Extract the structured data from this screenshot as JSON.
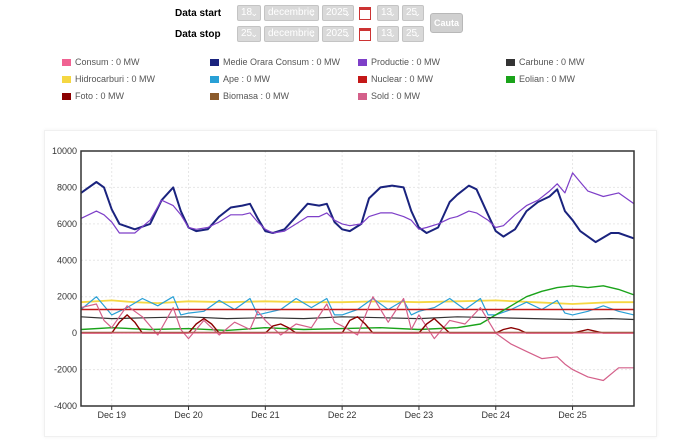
{
  "form": {
    "start_label": "Data start",
    "stop_label": "Data stop",
    "start": {
      "day": "18",
      "month": "decembrie",
      "year": "2025",
      "hour": "13",
      "minute": "25"
    },
    "stop": {
      "day": "25",
      "month": "decembrie",
      "year": "2025",
      "hour": "13",
      "minute": "25"
    },
    "search_button": "Cauta"
  },
  "legend": [
    {
      "label": "Consum : 0 MW",
      "color": "#f06292"
    },
    {
      "label": "Medie Orara Consum : 0 MW",
      "color": "#1a237e"
    },
    {
      "label": "Productie : 0 MW",
      "color": "#7e3fc8"
    },
    {
      "label": "Carbune : 0 MW",
      "color": "#333333"
    },
    {
      "label": "Hidrocarburi : 0 MW",
      "color": "#f5d742"
    },
    {
      "label": "Ape : 0 MW",
      "color": "#29a0d6"
    },
    {
      "label": "Nuclear : 0 MW",
      "color": "#c41818"
    },
    {
      "label": "Eolian : 0 MW",
      "color": "#1aa31a"
    },
    {
      "label": "Foto : 0 MW",
      "color": "#8b0000"
    },
    {
      "label": "Biomasa : 0 MW",
      "color": "#8b5a2b"
    },
    {
      "label": "Sold : 0 MW",
      "color": "#d4608a"
    }
  ],
  "chart_data": {
    "type": "line",
    "title": "",
    "xlabel": "",
    "ylabel": "",
    "ylim": [
      -4000,
      10000
    ],
    "xlim": [
      18.6,
      25.8
    ],
    "yticks": [
      10000,
      8000,
      6000,
      4000,
      2000,
      0,
      -2000,
      -4000
    ],
    "xtick_labels": [
      "Dec 19",
      "Dec 20",
      "Dec 21",
      "Dec 22",
      "Dec 23",
      "Dec 24",
      "Dec 25"
    ],
    "xtick_positions": [
      19,
      20,
      21,
      22,
      23,
      24,
      25
    ],
    "grid": true,
    "series": [
      {
        "name": "Medie Orara Consum",
        "color": "#1a237e",
        "width": 2,
        "x": [
          18.6,
          18.8,
          18.9,
          19.0,
          19.1,
          19.3,
          19.5,
          19.65,
          19.8,
          19.9,
          20.0,
          20.1,
          20.25,
          20.4,
          20.55,
          20.7,
          20.8,
          20.9,
          21.0,
          21.1,
          21.25,
          21.4,
          21.55,
          21.7,
          21.8,
          21.9,
          22.0,
          22.1,
          22.25,
          22.35,
          22.5,
          22.65,
          22.8,
          22.9,
          23.0,
          23.1,
          23.25,
          23.4,
          23.5,
          23.65,
          23.75,
          23.9,
          24.0,
          24.1,
          24.25,
          24.4,
          24.55,
          24.7,
          24.8,
          24.9,
          25.0,
          25.1,
          25.3,
          25.5,
          25.6,
          25.8
        ],
        "y": [
          7700,
          8300,
          8000,
          6800,
          6000,
          5700,
          6000,
          7300,
          8000,
          6700,
          5800,
          5600,
          5700,
          6400,
          6900,
          7000,
          7100,
          6300,
          5600,
          5500,
          5700,
          6400,
          7100,
          7000,
          7100,
          6100,
          5700,
          5600,
          6000,
          7400,
          8000,
          8100,
          8000,
          6700,
          5800,
          5500,
          5800,
          7200,
          7600,
          8100,
          7900,
          6500,
          5600,
          5300,
          5700,
          6700,
          7200,
          7500,
          7900,
          6700,
          6200,
          5600,
          5000,
          5500,
          5500,
          5200
        ]
      },
      {
        "name": "Productie",
        "color": "#7e3fc8",
        "width": 1.2,
        "x": [
          18.6,
          18.8,
          18.9,
          19.0,
          19.1,
          19.3,
          19.5,
          19.65,
          19.8,
          19.9,
          20.0,
          20.1,
          20.25,
          20.4,
          20.55,
          20.7,
          20.8,
          20.9,
          21.0,
          21.1,
          21.25,
          21.4,
          21.55,
          21.7,
          21.8,
          21.9,
          22.0,
          22.1,
          22.25,
          22.35,
          22.5,
          22.65,
          22.8,
          22.9,
          23.0,
          23.1,
          23.25,
          23.4,
          23.5,
          23.65,
          23.75,
          23.9,
          24.0,
          24.1,
          24.25,
          24.4,
          24.55,
          24.7,
          24.8,
          24.9,
          25.0,
          25.1,
          25.2,
          25.4,
          25.6,
          25.8
        ],
        "y": [
          6300,
          6700,
          6500,
          6100,
          5500,
          5500,
          6200,
          7300,
          7000,
          6500,
          5800,
          5700,
          5800,
          6100,
          6500,
          6500,
          6600,
          6100,
          5700,
          5500,
          5600,
          6000,
          6400,
          6400,
          6600,
          6200,
          6000,
          5900,
          6000,
          6400,
          6600,
          6600,
          6400,
          6200,
          5700,
          5800,
          6000,
          6300,
          6400,
          6700,
          6600,
          6200,
          5800,
          5900,
          6500,
          7000,
          7300,
          7800,
          8200,
          7700,
          8800,
          8300,
          7800,
          7500,
          7700,
          7100
        ]
      },
      {
        "name": "Hidrocarburi",
        "color": "#f5d742",
        "width": 1.8,
        "x": [
          18.6,
          19.0,
          19.3,
          19.6,
          20.0,
          20.5,
          21.0,
          21.5,
          22.0,
          22.5,
          23.0,
          23.5,
          24.0,
          24.5,
          25.0,
          25.5,
          25.8
        ],
        "y": [
          1700,
          1800,
          1700,
          1650,
          1750,
          1700,
          1750,
          1700,
          1700,
          1750,
          1700,
          1750,
          1800,
          1700,
          1600,
          1700,
          1700
        ]
      },
      {
        "name": "Ape",
        "color": "#29a0d6",
        "width": 1.2,
        "x": [
          18.6,
          18.8,
          18.9,
          19.0,
          19.2,
          19.4,
          19.6,
          19.8,
          19.9,
          20.0,
          20.2,
          20.4,
          20.6,
          20.8,
          20.9,
          21.0,
          21.2,
          21.4,
          21.6,
          21.8,
          21.9,
          22.0,
          22.2,
          22.4,
          22.6,
          22.8,
          22.9,
          23.0,
          23.2,
          23.4,
          23.6,
          23.8,
          23.9,
          24.0,
          24.2,
          24.4,
          24.6,
          24.8,
          24.9,
          25.0,
          25.2,
          25.4,
          25.6,
          25.8
        ],
        "y": [
          1300,
          2000,
          1500,
          1000,
          1400,
          1900,
          1500,
          2000,
          1000,
          1100,
          1200,
          1800,
          1300,
          1900,
          1000,
          1100,
          1300,
          1900,
          1400,
          1900,
          1000,
          1000,
          1300,
          1900,
          1300,
          1800,
          1000,
          1200,
          1400,
          1900,
          1300,
          1900,
          1000,
          1000,
          1300,
          1700,
          1300,
          1800,
          1100,
          1000,
          1200,
          1500,
          1200,
          1000
        ]
      },
      {
        "name": "Nuclear",
        "color": "#c41818",
        "width": 1.4,
        "x": [
          18.6,
          25.8
        ],
        "y": [
          1300,
          1300
        ]
      },
      {
        "name": "Eolian",
        "color": "#1aa31a",
        "width": 1.4,
        "x": [
          18.6,
          19.0,
          19.5,
          20.0,
          20.5,
          21.0,
          21.5,
          22.0,
          22.5,
          23.0,
          23.5,
          23.8,
          24.0,
          24.2,
          24.4,
          24.6,
          24.8,
          25.0,
          25.2,
          25.4,
          25.6,
          25.8
        ],
        "y": [
          200,
          300,
          200,
          250,
          150,
          300,
          200,
          250,
          300,
          200,
          300,
          500,
          1000,
          1500,
          2000,
          2300,
          2500,
          2600,
          2500,
          2600,
          2400,
          2100
        ]
      },
      {
        "name": "Carbune",
        "color": "#333333",
        "width": 1.2,
        "x": [
          18.6,
          19.0,
          19.5,
          20.0,
          20.5,
          21.0,
          21.5,
          22.0,
          22.5,
          23.0,
          23.5,
          24.0,
          24.5,
          25.0,
          25.5,
          25.8
        ],
        "y": [
          900,
          800,
          850,
          900,
          800,
          850,
          800,
          900,
          850,
          800,
          900,
          850,
          800,
          750,
          800,
          750
        ]
      },
      {
        "name": "Sold",
        "color": "#d4608a",
        "width": 1.2,
        "x": [
          18.6,
          18.8,
          18.9,
          19.0,
          19.2,
          19.4,
          19.6,
          19.8,
          19.9,
          20.0,
          20.2,
          20.4,
          20.6,
          20.8,
          20.9,
          21.0,
          21.2,
          21.4,
          21.6,
          21.8,
          21.9,
          22.0,
          22.2,
          22.4,
          22.6,
          22.8,
          22.9,
          23.0,
          23.2,
          23.4,
          23.6,
          23.8,
          23.9,
          24.0,
          24.2,
          24.4,
          24.6,
          24.8,
          24.9,
          25.0,
          25.2,
          25.4,
          25.6,
          25.8
        ],
        "y": [
          1400,
          1600,
          700,
          300,
          1500,
          900,
          -100,
          1400,
          200,
          -300,
          700,
          -100,
          600,
          200,
          1200,
          700,
          -100,
          500,
          300,
          1600,
          600,
          400,
          -100,
          2000,
          600,
          1900,
          200,
          1000,
          -300,
          700,
          500,
          1400,
          700,
          0,
          -600,
          -1000,
          -1400,
          -1300,
          -1700,
          -2000,
          -2400,
          -2600,
          -1900,
          -1900
        ]
      },
      {
        "name": "Foto",
        "color": "#8b0000",
        "width": 1.4,
        "x": [
          18.6,
          18.9,
          19.0,
          19.1,
          19.2,
          19.3,
          19.4,
          19.9,
          20.0,
          20.1,
          20.2,
          20.3,
          20.4,
          20.9,
          21.0,
          21.1,
          21.2,
          21.3,
          21.4,
          21.9,
          22.0,
          22.1,
          22.2,
          22.3,
          22.4,
          22.9,
          23.0,
          23.1,
          23.2,
          23.3,
          23.4,
          23.9,
          24.0,
          24.1,
          24.2,
          24.3,
          24.4,
          24.9,
          25.0,
          25.1,
          25.2,
          25.3,
          25.4,
          25.8
        ],
        "y": [
          0,
          0,
          0,
          600,
          1000,
          600,
          0,
          0,
          0,
          500,
          800,
          500,
          0,
          0,
          0,
          400,
          500,
          300,
          0,
          0,
          0,
          700,
          900,
          500,
          0,
          0,
          0,
          500,
          800,
          400,
          0,
          0,
          0,
          200,
          300,
          200,
          0,
          0,
          0,
          100,
          200,
          100,
          0,
          0
        ]
      },
      {
        "name": "Biomasa",
        "color": "#8b5a2b",
        "width": 1,
        "x": [
          18.6,
          25.8
        ],
        "y": [
          50,
          50
        ]
      },
      {
        "name": "Consum",
        "color": "#f06292",
        "width": 1,
        "x": [
          18.6,
          25.8
        ],
        "y": [
          0,
          0
        ]
      }
    ]
  }
}
